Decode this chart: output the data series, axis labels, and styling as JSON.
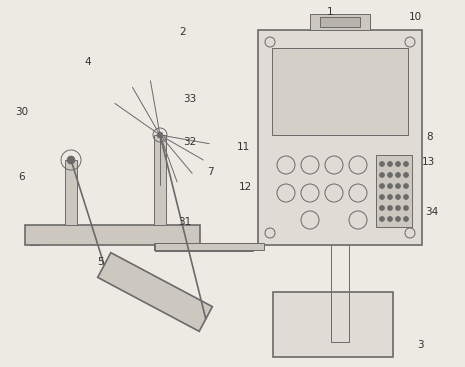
{
  "bg_color": "#ede9e3",
  "line_color": "#6a6a6a",
  "fill_light": "#e0dbd4",
  "fill_medium": "#ccc8c0",
  "fill_dark": "#b8b4ac",
  "screen_fill": "#d4d0c8",
  "label_color": "#333333",
  "label_fontsize": 7.5,
  "lw": 1.2,
  "tlw": 0.7
}
